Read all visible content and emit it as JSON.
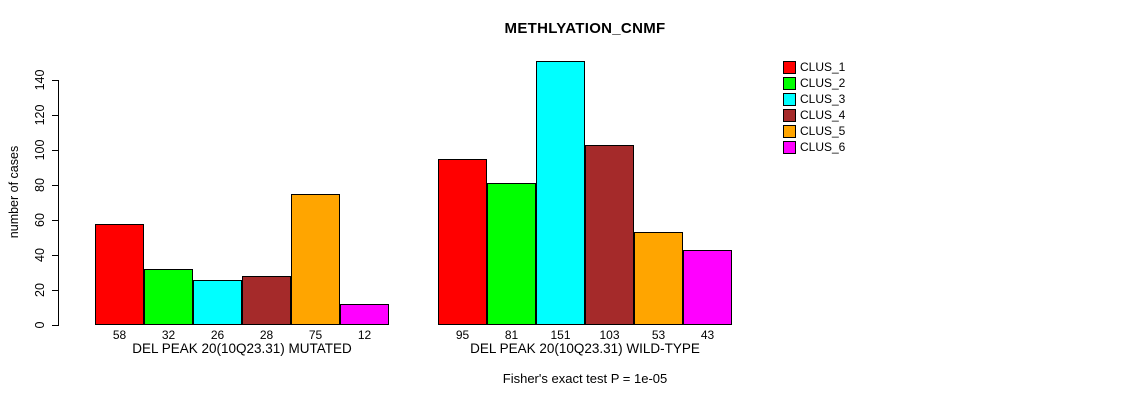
{
  "chart_data": {
    "type": "bar",
    "title": "METHLYATION_CNMF",
    "ylabel": "number of cases",
    "xlabel": "",
    "ylim": [
      0,
      140
    ],
    "yticks": [
      0,
      20,
      40,
      60,
      80,
      100,
      120,
      140
    ],
    "grid": false,
    "legend_position": "right",
    "categories": [
      "DEL PEAK 20(10Q23.31) MUTATED",
      "DEL PEAK 20(10Q23.31) WILD-TYPE"
    ],
    "series": [
      {
        "name": "CLUS_1",
        "color": "#FF0000",
        "values": [
          58,
          95
        ]
      },
      {
        "name": "CLUS_2",
        "color": "#00FF00",
        "values": [
          32,
          81
        ]
      },
      {
        "name": "CLUS_3",
        "color": "#00FFFF",
        "values": [
          26,
          151
        ]
      },
      {
        "name": "CLUS_4",
        "color": "#A52A2A",
        "values": [
          28,
          103
        ]
      },
      {
        "name": "CLUS_5",
        "color": "#FFA500",
        "values": [
          75,
          53
        ]
      },
      {
        "name": "CLUS_6",
        "color": "#FF00FF",
        "values": [
          12,
          43
        ]
      }
    ],
    "annotation": "Fisher's exact test P = 1e-05",
    "axis_color": "#000000",
    "bar_border_color": "#000000"
  }
}
